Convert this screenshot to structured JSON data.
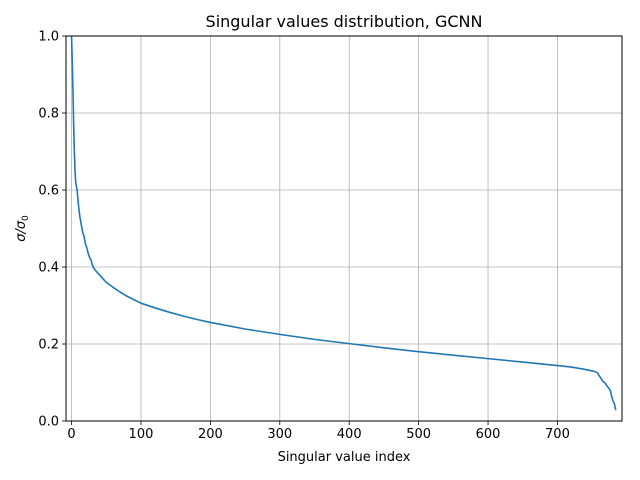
{
  "chart_data": {
    "type": "line",
    "title": "Singular values distribution, GCNN",
    "xlabel": "Singular value index",
    "ylabel_html": "σ/σ",
    "ylabel_sub": "0",
    "xlim": [
      -8,
      793
    ],
    "ylim": [
      0.0,
      1.0
    ],
    "xticks": [
      0,
      100,
      200,
      300,
      400,
      500,
      600,
      700
    ],
    "xtick_labels": [
      "0",
      "100",
      "200",
      "300",
      "400",
      "500",
      "600",
      "700"
    ],
    "yticks": [
      0.0,
      0.2,
      0.4,
      0.6,
      0.8,
      1.0
    ],
    "ytick_labels": [
      "0.0",
      "0.2",
      "0.4",
      "0.6",
      "0.8",
      "1.0"
    ],
    "grid": true,
    "line_color": "#1f77b4",
    "series": [
      {
        "x": [
          0,
          1,
          2,
          3,
          4,
          5,
          6,
          7,
          8,
          10,
          12,
          14,
          16,
          18,
          20,
          22,
          24,
          26,
          28,
          30,
          32,
          35,
          40,
          45,
          50,
          60,
          70,
          80,
          90,
          100,
          120,
          140,
          160,
          180,
          200,
          250,
          300,
          350,
          400,
          450,
          500,
          550,
          600,
          650,
          700,
          720,
          740,
          750,
          755,
          758,
          760,
          763,
          765,
          768,
          770,
          772,
          774,
          776,
          778,
          780,
          782,
          784
        ],
        "y": [
          1.0,
          0.93,
          0.86,
          0.77,
          0.7,
          0.65,
          0.62,
          0.61,
          0.6,
          0.56,
          0.53,
          0.51,
          0.49,
          0.48,
          0.46,
          0.45,
          0.435,
          0.425,
          0.418,
          0.405,
          0.397,
          0.39,
          0.38,
          0.37,
          0.36,
          0.347,
          0.335,
          0.324,
          0.315,
          0.306,
          0.294,
          0.283,
          0.273,
          0.264,
          0.256,
          0.239,
          0.225,
          0.212,
          0.201,
          0.19,
          0.18,
          0.171,
          0.162,
          0.153,
          0.144,
          0.14,
          0.134,
          0.13,
          0.128,
          0.124,
          0.118,
          0.11,
          0.104,
          0.1,
          0.095,
          0.09,
          0.085,
          0.08,
          0.065,
          0.052,
          0.045,
          0.028
        ]
      }
    ]
  }
}
